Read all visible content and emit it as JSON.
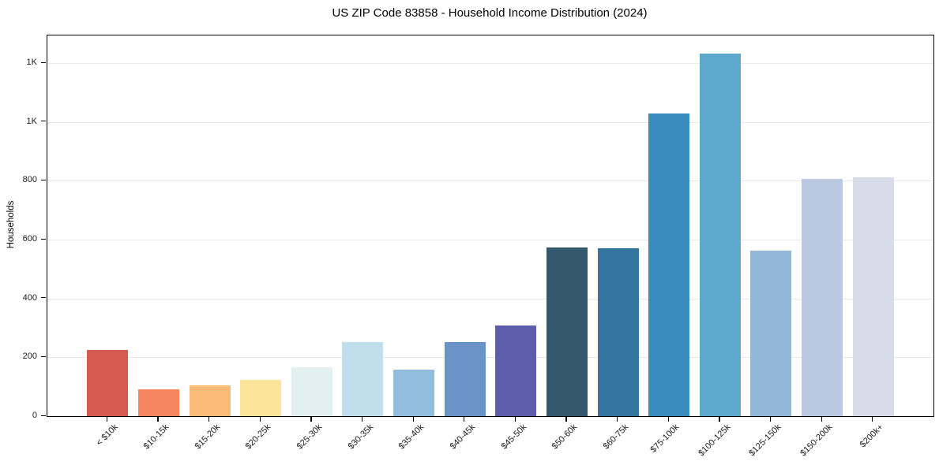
{
  "window": {
    "background_color": "#ffffff"
  },
  "chart_data": {
    "type": "bar",
    "title": "US ZIP Code 83858 - Household Income Distribution (2024)",
    "xlabel": "",
    "ylabel": "Households",
    "categories": [
      "< $10k",
      "$10-15k",
      "$15-20k",
      "$20-25k",
      "$25-30k",
      "$30-35k",
      "$35-40k",
      "$40-45k",
      "$45-50k",
      "$50-60k",
      "$60-75k",
      "$75-100k",
      "$100-125k",
      "$125-150k",
      "$150-200k",
      "$200k+"
    ],
    "values": [
      224,
      91,
      104,
      122,
      167,
      253,
      157,
      253,
      309,
      574,
      570,
      1029,
      1232,
      563,
      806,
      812
    ],
    "bar_colors": [
      "#d55a4f",
      "#f48660",
      "#fbbb78",
      "#fde49d",
      "#e3f0f2",
      "#bfdfed",
      "#92bedd",
      "#6a93c8",
      "#5c5dab",
      "#34596f",
      "#33759f",
      "#388cbe",
      "#5fa8cd",
      "#93b8d7",
      "#bac9e1",
      "#d8dbe9"
    ],
    "ylim": [
      0,
      1294
    ],
    "yticks": [
      {
        "value": 0,
        "label": "0"
      },
      {
        "value": 200,
        "label": "200"
      },
      {
        "value": 400,
        "label": "400"
      },
      {
        "value": 600,
        "label": "600"
      },
      {
        "value": 800,
        "label": "800"
      },
      {
        "value": 1000,
        "label": "1K"
      },
      {
        "value": 1200,
        "label": "1K"
      }
    ],
    "grid": "horizontal",
    "legend_position": "none",
    "x_tick_rotation_deg": 45
  },
  "colors": {
    "axis_spine": "#000000",
    "gridline": "#e8e8e8",
    "tick_text": "#1a1a1a",
    "title_text": "#000000"
  }
}
